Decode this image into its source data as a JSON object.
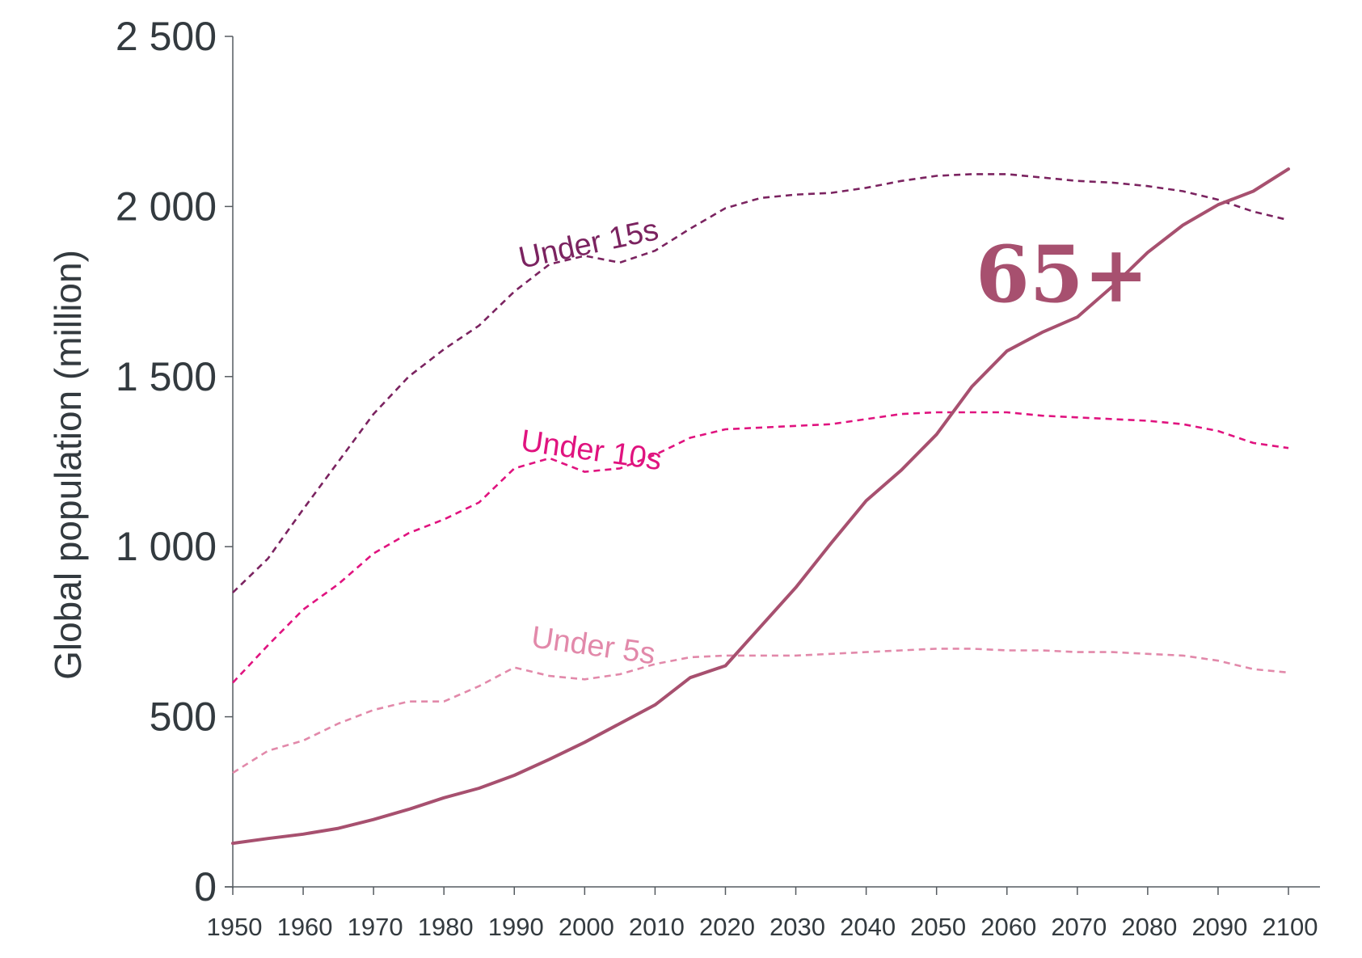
{
  "chart_data": {
    "type": "line",
    "title": "",
    "xlabel": "",
    "ylabel": "Global population (million)",
    "xlim": [
      1950,
      2100
    ],
    "ylim": [
      0,
      2500
    ],
    "x_ticks": [
      "1950",
      "1960",
      "1970",
      "1980",
      "1990",
      "2000",
      "2010",
      "2020",
      "2030",
      "2040",
      "2050",
      "2060",
      "2070",
      "2080",
      "2090",
      "2100"
    ],
    "y_ticks": [
      "0",
      "500",
      "1 000",
      "1 500",
      "2 000",
      "2 500"
    ],
    "grid": false,
    "legend": "none (series labelled inline)",
    "series": [
      {
        "name": "Under 15s",
        "color": "#7b2360",
        "style": "dashed",
        "x": [
          1950,
          1955,
          1960,
          1965,
          1970,
          1975,
          1980,
          1985,
          1990,
          1995,
          2000,
          2005,
          2010,
          2015,
          2020,
          2025,
          2030,
          2035,
          2040,
          2045,
          2050,
          2055,
          2060,
          2065,
          2070,
          2075,
          2080,
          2085,
          2090,
          2095,
          2100
        ],
        "values": [
          865,
          965,
          1110,
          1250,
          1390,
          1500,
          1580,
          1650,
          1750,
          1830,
          1855,
          1835,
          1870,
          1935,
          1995,
          2025,
          2035,
          2040,
          2055,
          2075,
          2090,
          2095,
          2095,
          2085,
          2075,
          2070,
          2060,
          2045,
          2020,
          1985,
          1960
        ]
      },
      {
        "name": "Under 10s",
        "color": "#e0137f",
        "style": "dashed",
        "x": [
          1950,
          1955,
          1960,
          1965,
          1970,
          1975,
          1980,
          1985,
          1990,
          1995,
          2000,
          2005,
          2010,
          2015,
          2020,
          2025,
          2030,
          2035,
          2040,
          2045,
          2050,
          2055,
          2060,
          2065,
          2070,
          2075,
          2080,
          2085,
          2090,
          2095,
          2100
        ],
        "values": [
          600,
          710,
          815,
          890,
          980,
          1040,
          1080,
          1130,
          1230,
          1260,
          1220,
          1230,
          1270,
          1320,
          1345,
          1350,
          1355,
          1360,
          1375,
          1390,
          1395,
          1395,
          1395,
          1385,
          1380,
          1375,
          1370,
          1360,
          1340,
          1305,
          1290
        ]
      },
      {
        "name": "Under 5s",
        "color": "#e289aa",
        "style": "dashed",
        "x": [
          1950,
          1955,
          1960,
          1965,
          1970,
          1975,
          1980,
          1985,
          1990,
          1995,
          2000,
          2005,
          2010,
          2015,
          2020,
          2025,
          2030,
          2035,
          2040,
          2045,
          2050,
          2055,
          2060,
          2065,
          2070,
          2075,
          2080,
          2085,
          2090,
          2095,
          2100
        ],
        "values": [
          335,
          400,
          430,
          480,
          520,
          545,
          545,
          590,
          645,
          620,
          610,
          625,
          655,
          675,
          680,
          680,
          680,
          685,
          690,
          695,
          700,
          700,
          695,
          695,
          690,
          690,
          685,
          680,
          665,
          640,
          630
        ]
      },
      {
        "name": "65+",
        "color": "#a7506f",
        "style": "solid",
        "x": [
          1950,
          1955,
          1960,
          1965,
          1970,
          1975,
          1980,
          1985,
          1990,
          1995,
          2000,
          2005,
          2010,
          2015,
          2020,
          2025,
          2030,
          2035,
          2040,
          2045,
          2050,
          2055,
          2060,
          2065,
          2070,
          2075,
          2080,
          2085,
          2090,
          2095,
          2100
        ],
        "values": [
          128,
          142,
          155,
          172,
          198,
          228,
          262,
          290,
          328,
          375,
          425,
          480,
          535,
          615,
          650,
          765,
          880,
          1010,
          1135,
          1225,
          1330,
          1470,
          1575,
          1630,
          1675,
          1765,
          1865,
          1945,
          2005,
          2045,
          2110
        ]
      }
    ]
  }
}
